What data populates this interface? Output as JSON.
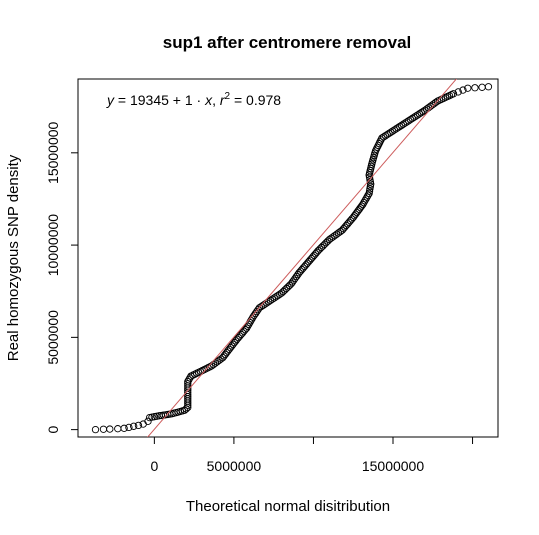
{
  "chart_data": {
    "type": "scatter",
    "title": "sup1 after centromere removal",
    "xlabel": "Theoretical normal disitribution",
    "ylabel": "Real homozygous SNP density",
    "xlim": [
      -4800000,
      21600000
    ],
    "ylim": [
      -400000,
      19000000
    ],
    "x_ticks": [
      0,
      5000000,
      10000000,
      15000000,
      20000000
    ],
    "x_tick_labels": [
      "0",
      "5000000",
      "",
      "15000000",
      ""
    ],
    "y_ticks": [
      0,
      5000000,
      10000000,
      15000000
    ],
    "y_tick_labels": [
      "0",
      "5000000",
      "10000000",
      "15000000"
    ],
    "annotation": {
      "y": "y",
      "eq": " = 19345 + 1 · ",
      "x": "x",
      "sep": ",  ",
      "r": "r",
      "sup": "2",
      "r2val": " = 0.978"
    },
    "fit_line": {
      "intercept": 19345,
      "slope": 1,
      "r2": 0.978,
      "color": "#cd5c5c"
    },
    "series": [
      {
        "points": [
          [
            -3700000,
            0
          ],
          [
            -3200000,
            20000
          ],
          [
            -2800000,
            30000
          ],
          [
            -2300000,
            50000
          ],
          [
            -1900000,
            70000
          ],
          [
            -1600000,
            120000
          ],
          [
            -1300000,
            180000
          ],
          [
            -1000000,
            230000
          ],
          [
            -700000,
            300000
          ],
          [
            -400000,
            450000
          ],
          [
            -300000,
            650000
          ],
          [
            0,
            700000
          ],
          [
            300000,
            750000
          ],
          [
            700000,
            800000
          ],
          [
            1100000,
            860000
          ],
          [
            1500000,
            950000
          ],
          [
            1900000,
            1050000
          ],
          [
            2100000,
            1200000
          ],
          [
            2100000,
            2600000
          ],
          [
            2300000,
            2900000
          ],
          [
            2900000,
            3150000
          ],
          [
            3600000,
            3450000
          ],
          [
            4300000,
            3900000
          ],
          [
            4700000,
            4350000
          ],
          [
            5200000,
            4900000
          ],
          [
            5800000,
            5500000
          ],
          [
            6200000,
            6100000
          ],
          [
            6600000,
            6600000
          ],
          [
            7300000,
            7000000
          ],
          [
            8000000,
            7400000
          ],
          [
            8600000,
            7900000
          ],
          [
            9100000,
            8500000
          ],
          [
            9700000,
            9100000
          ],
          [
            10300000,
            9700000
          ],
          [
            11000000,
            10300000
          ],
          [
            11800000,
            10800000
          ],
          [
            12500000,
            11500000
          ],
          [
            13100000,
            12200000
          ],
          [
            13500000,
            12800000
          ],
          [
            13600000,
            13300000
          ],
          [
            13500000,
            13800000
          ],
          [
            13700000,
            14500000
          ],
          [
            13900000,
            15100000
          ],
          [
            14300000,
            15800000
          ],
          [
            15200000,
            16300000
          ],
          [
            16100000,
            16800000
          ],
          [
            17000000,
            17300000
          ],
          [
            17800000,
            17800000
          ],
          [
            18800000,
            18200000
          ],
          [
            19700000,
            18500000
          ],
          [
            20600000,
            18550000
          ],
          [
            21000000,
            18580000
          ]
        ]
      }
    ]
  }
}
